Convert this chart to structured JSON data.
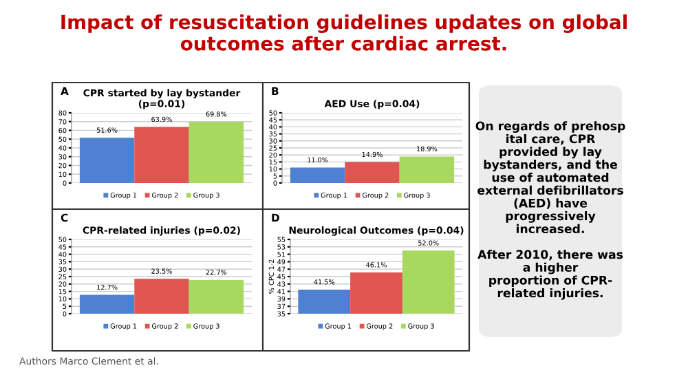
{
  "chart_data": [
    {
      "type": "bar",
      "title": "CPR started by lay bystander\n(p=0.01)",
      "annotations": [
        "A"
      ],
      "categories": [
        null
      ],
      "legend": "bottom",
      "grid": "y",
      "data_labels": true,
      "series": [
        {
          "name": "Group 1",
          "color": "#4f81d0",
          "values": [
            51.6
          ],
          "value_labels": [
            "51.6%"
          ]
        },
        {
          "name": "Group 2",
          "color": "#e05550",
          "values": [
            63.9
          ],
          "value_labels": [
            "63.9%"
          ]
        },
        {
          "name": "Group 3",
          "color": "#a8d860",
          "values": [
            69.8
          ],
          "value_labels": [
            "69.8%"
          ]
        }
      ],
      "ylim": [
        0,
        80
      ],
      "yticks": [
        0,
        10,
        20,
        30,
        40,
        50,
        60,
        70,
        80
      ]
    },
    {
      "type": "bar",
      "title": "AED Use (p=0.04)",
      "annotations": [
        "B"
      ],
      "categories": [
        null
      ],
      "legend": "bottom",
      "grid": "y",
      "data_labels": true,
      "series": [
        {
          "name": "Group 1",
          "color": "#4f81d0",
          "values": [
            11.0
          ],
          "value_labels": [
            "11.0%"
          ]
        },
        {
          "name": "Group 2",
          "color": "#e05550",
          "values": [
            14.9
          ],
          "value_labels": [
            "14.9%"
          ]
        },
        {
          "name": "Group 3",
          "color": "#a8d860",
          "values": [
            18.9
          ],
          "value_labels": [
            "18.9%"
          ]
        }
      ],
      "ylim": [
        0,
        50
      ],
      "yticks": [
        0,
        5,
        10,
        15,
        20,
        25,
        30,
        35,
        40,
        45,
        50
      ]
    },
    {
      "type": "bar",
      "title": "CPR-related injuries (p=0.02)",
      "annotations": [
        "C"
      ],
      "categories": [
        null
      ],
      "legend": "bottom",
      "grid": "y",
      "data_labels": true,
      "series": [
        {
          "name": "Group 1",
          "color": "#4f81d0",
          "values": [
            12.7
          ],
          "value_labels": [
            "12.7%"
          ]
        },
        {
          "name": "Group 2",
          "color": "#e05550",
          "values": [
            23.5
          ],
          "value_labels": [
            "23.5%"
          ]
        },
        {
          "name": "Group 3",
          "color": "#a8d860",
          "values": [
            22.7
          ],
          "value_labels": [
            "22.7%"
          ]
        }
      ],
      "ylim": [
        0,
        50
      ],
      "yticks": [
        0,
        5,
        10,
        15,
        20,
        25,
        30,
        35,
        40,
        45,
        50
      ]
    },
    {
      "type": "bar",
      "title": "Neurological Outcomes (p=0.04)",
      "ylabel": "% CPC 1-2",
      "annotations": [
        "D"
      ],
      "categories": [
        null
      ],
      "legend": "bottom",
      "grid": "y",
      "data_labels": true,
      "series": [
        {
          "name": "Group 1",
          "color": "#4f81d0",
          "values": [
            41.5
          ],
          "value_labels": [
            "41.5%"
          ]
        },
        {
          "name": "Group 2",
          "color": "#e05550",
          "values": [
            46.1
          ],
          "value_labels": [
            "46.1%"
          ]
        },
        {
          "name": "Group 3",
          "color": "#a8d860",
          "values": [
            52.0
          ],
          "value_labels": [
            "52.0%"
          ]
        }
      ],
      "ylim": [
        35,
        55
      ],
      "yticks": [
        35,
        37,
        39,
        41,
        43,
        45,
        47,
        49,
        51,
        53,
        55
      ]
    },
    {
      "type": "other",
      "title": "Impact of resuscitation guidelines updates on global\noutcomes after cardiac arrest.",
      "annotations": [
        "On regards of prehosp\nital care, CPR\nprovided by lay\nbystanders, and the\nuse of automated\nexternal defibrillators\n(AED) have\nprogressively\nincreased.\n\nAfter 2010, there was\na higher\nproportion of CPR-\nrelated injuries.",
        "Authors Marco Clement et al."
      ]
    }
  ]
}
